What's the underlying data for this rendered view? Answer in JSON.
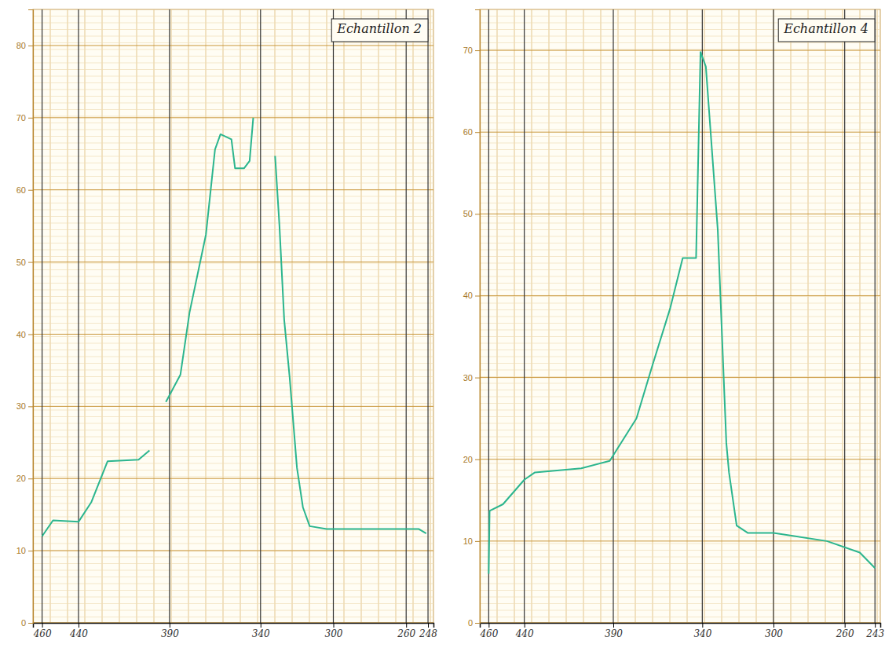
{
  "chart_data": [
    {
      "type": "line",
      "title": "Echantillon 2",
      "x": [
        460,
        454,
        440,
        433,
        424,
        407,
        401,
        398,
        392,
        384,
        379,
        370,
        365,
        362,
        356,
        354,
        349,
        346,
        344,
        338,
        332,
        329.6,
        327,
        324,
        320,
        316.7,
        313,
        303.7,
        253,
        249
      ],
      "series": [
        {
          "color": "#2bb58e",
          "values": [
            12,
            14.2,
            14,
            16.7,
            22.4,
            22.6,
            23.9,
            null,
            30.6,
            34.4,
            43,
            53.8,
            65.6,
            67.7,
            67,
            63,
            63,
            64,
            70,
            null,
            64.7,
            55,
            42,
            34,
            21.5,
            16,
            13.4,
            13,
            13,
            12.4
          ]
        }
      ],
      "xlim": [
        465,
        245
      ],
      "ylim": [
        0,
        85
      ],
      "xticks": [
        460,
        440,
        390,
        340,
        300,
        260,
        248
      ],
      "yticks": [
        0,
        10,
        20,
        30,
        40,
        50,
        60,
        70,
        80
      ],
      "grid": true
    },
    {
      "type": "line",
      "title": "Echantillon 4",
      "x": [
        460,
        459.5,
        452,
        440,
        434,
        408,
        392,
        377,
        368,
        358,
        351,
        343.5,
        341,
        338,
        331.3,
        326.5,
        325,
        320.7,
        314.5,
        300,
        270,
        251.5,
        243
      ],
      "series": [
        {
          "color": "#2bb58e",
          "values": [
            6,
            13.7,
            14.5,
            17.5,
            18.4,
            18.9,
            19.8,
            25,
            31.5,
            38.5,
            44.6,
            44.6,
            69.8,
            68,
            48,
            22,
            18.4,
            11.9,
            11,
            11,
            10,
            8.6,
            6.7
          ]
        }
      ],
      "xlim": [
        465,
        240
      ],
      "ylim": [
        0,
        75
      ],
      "xticks": [
        460,
        440,
        390,
        340,
        300,
        260,
        243
      ],
      "yticks": [
        0,
        10,
        20,
        30,
        40,
        50,
        60,
        70
      ],
      "grid": true
    }
  ]
}
